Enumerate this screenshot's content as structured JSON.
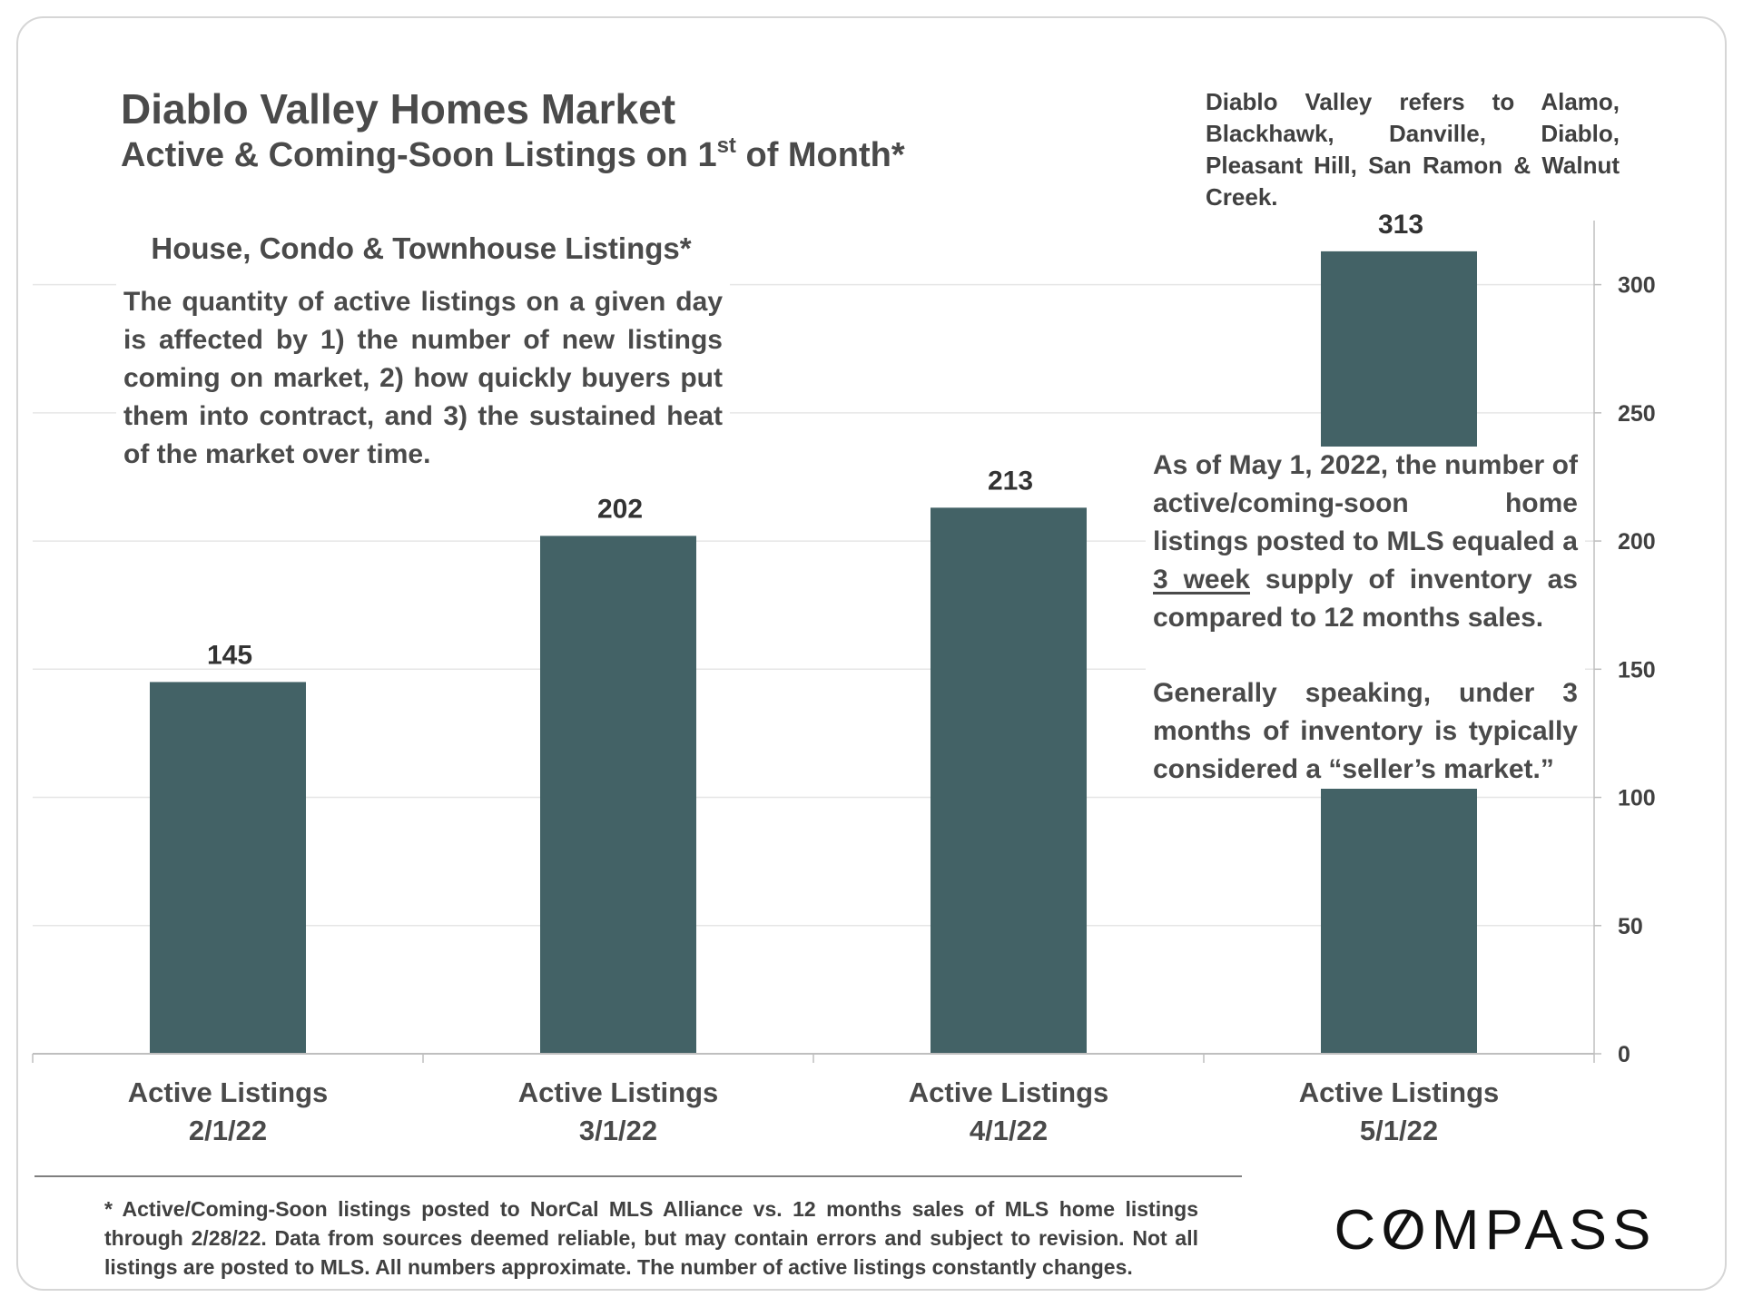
{
  "header": {
    "title": "Diablo Valley Homes Market",
    "subtitle_main": "Active & Coming-Soon Listings on 1",
    "subtitle_sup": "st",
    "subtitle_end": " of Month*"
  },
  "region_note": "Diablo Valley refers to Alamo, Blackhawk, Danville, Diablo, Pleasant Hill, San Ramon & Walnut Creek.",
  "panel": {
    "heading": "House, Condo & Townhouse Listings*",
    "explanation": "The quantity of active listings on a given day is affected by 1) the number of new listings coming on market, 2) how quickly buyers put them into contract, and 3) the sustained heat of the market over time."
  },
  "insight": {
    "line_start": "As of May 1, 2022, the number of active/coming-soon home listings posted to MLS equaled a ",
    "highlight": "3 week",
    "line_end": " supply of inventory as compared to 12 months sales.",
    "second": "Generally speaking, under 3 months of inventory is typically considered a “seller’s market.”"
  },
  "footnote": "* Active/Coming-Soon listings posted to NorCal MLS Alliance vs. 12 months sales of MLS home listings through 2/28/22. Data from sources deemed reliable, but may contain errors and subject to revision. Not all listings are posted to MLS. All numbers approximate. The number of active listings constantly changes.",
  "logo": {
    "text": "COMPASS"
  },
  "colors": {
    "bar": "#436266",
    "gridline": "#e6e6e6",
    "axis": "#bfbfbf",
    "text": "#404040"
  },
  "chart_data": {
    "type": "bar",
    "title": "House, Condo & Townhouse Listings*",
    "categories": [
      [
        "Active Listings",
        "2/1/22"
      ],
      [
        "Active Listings",
        "3/1/22"
      ],
      [
        "Active Listings",
        "4/1/22"
      ],
      [
        "Active Listings",
        "5/1/22"
      ]
    ],
    "values": [
      145,
      202,
      213,
      313
    ],
    "data_labels": [
      "145",
      "202",
      "213",
      "313"
    ],
    "ylim": [
      0,
      325
    ],
    "yticks": [
      0,
      50,
      100,
      150,
      200,
      250,
      300
    ],
    "y_axis_side": "right",
    "grid": true,
    "xlabel": "",
    "ylabel": ""
  }
}
